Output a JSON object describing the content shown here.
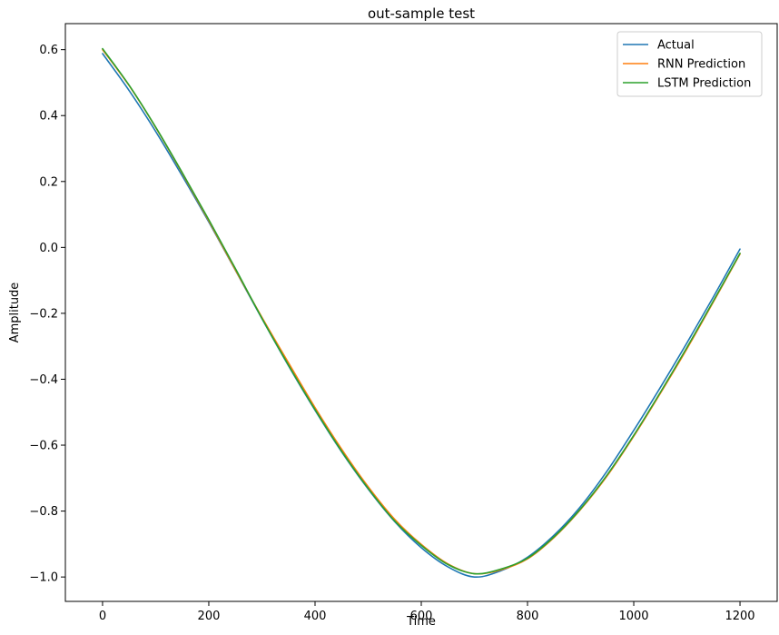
{
  "chart_data": {
    "type": "line",
    "title": "out-sample test",
    "xlabel": "Time",
    "ylabel": "Amplitude",
    "xlim": [
      -70,
      1270
    ],
    "ylim": [
      -1.074,
      0.679
    ],
    "xticks": [
      0,
      200,
      400,
      600,
      800,
      1000,
      1200
    ],
    "yticks": [
      -1.0,
      -0.8,
      -0.6,
      -0.4,
      -0.2,
      0.0,
      0.2,
      0.4,
      0.6
    ],
    "ytick_labels": [
      "−1.0",
      "−0.8",
      "−0.6",
      "−0.4",
      "−0.2",
      "0.0",
      "0.2",
      "0.4",
      "0.6"
    ],
    "xtick_labels": [
      "0",
      "200",
      "400",
      "600",
      "800",
      "1000",
      "1200"
    ],
    "grid": false,
    "legend_position": "top-right",
    "series": [
      {
        "name": "Actual",
        "color": "#1f77b4",
        "x": [
          0,
          50,
          100,
          150,
          200,
          250,
          300,
          350,
          400,
          450,
          500,
          550,
          600,
          650,
          700,
          750,
          800,
          850,
          900,
          950,
          1000,
          1050,
          1100,
          1150,
          1200
        ],
        "y": [
          0.588,
          0.476,
          0.352,
          0.217,
          0.077,
          -0.069,
          -0.216,
          -0.359,
          -0.494,
          -0.62,
          -0.733,
          -0.832,
          -0.911,
          -0.969,
          -1.0,
          -0.981,
          -0.94,
          -0.873,
          -0.786,
          -0.678,
          -0.555,
          -0.425,
          -0.29,
          -0.15,
          -0.005
        ]
      },
      {
        "name": "RNN Prediction",
        "color": "#ff7f0e",
        "x": [
          0,
          50,
          100,
          150,
          200,
          250,
          300,
          350,
          400,
          450,
          500,
          550,
          600,
          650,
          700,
          750,
          800,
          850,
          900,
          950,
          1000,
          1050,
          1100,
          1150,
          1200
        ],
        "y": [
          0.6,
          0.491,
          0.364,
          0.225,
          0.081,
          -0.068,
          -0.212,
          -0.35,
          -0.486,
          -0.612,
          -0.726,
          -0.825,
          -0.901,
          -0.96,
          -0.99,
          -0.978,
          -0.945,
          -0.88,
          -0.795,
          -0.693,
          -0.573,
          -0.443,
          -0.308,
          -0.165,
          -0.02
        ]
      },
      {
        "name": "LSTM Prediction",
        "color": "#2ca02c",
        "x": [
          0,
          50,
          100,
          150,
          200,
          250,
          300,
          350,
          400,
          450,
          500,
          550,
          600,
          650,
          700,
          750,
          800,
          850,
          900,
          950,
          1000,
          1050,
          1100,
          1150,
          1200
        ],
        "y": [
          0.603,
          0.492,
          0.365,
          0.227,
          0.084,
          -0.064,
          -0.215,
          -0.357,
          -0.492,
          -0.618,
          -0.731,
          -0.83,
          -0.904,
          -0.962,
          -0.99,
          -0.976,
          -0.943,
          -0.878,
          -0.793,
          -0.69,
          -0.57,
          -0.44,
          -0.304,
          -0.162,
          -0.018
        ]
      }
    ]
  }
}
